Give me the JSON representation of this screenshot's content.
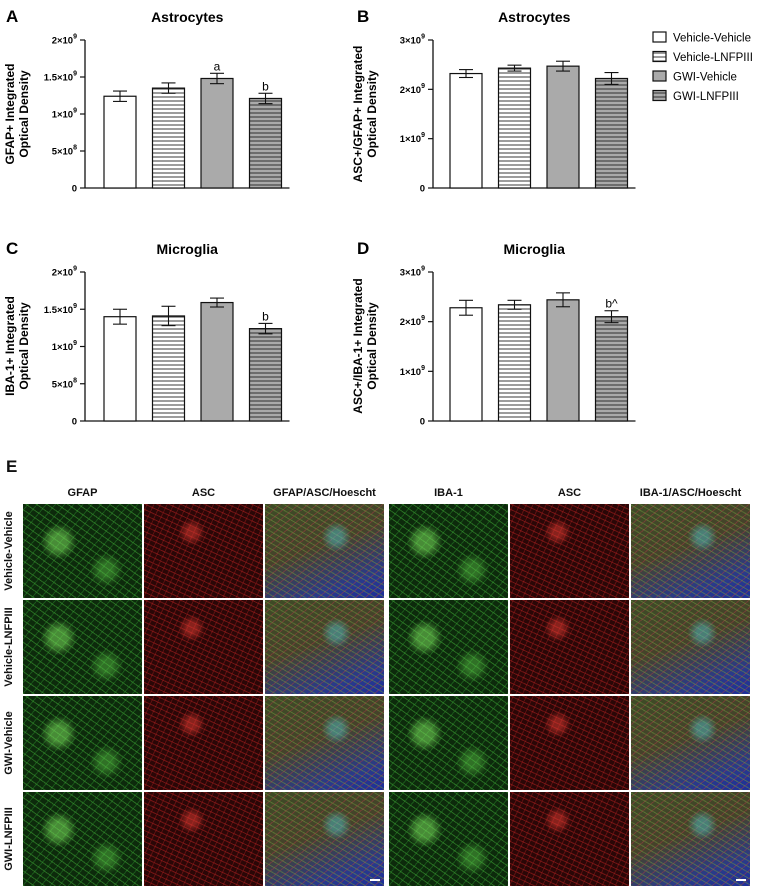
{
  "legend": {
    "items": [
      {
        "label": "Vehicle-Vehicle",
        "pattern": "white"
      },
      {
        "label": "Vehicle-LNFPIII",
        "pattern": "hlines"
      },
      {
        "label": "GWI-Vehicle",
        "pattern": "gray"
      },
      {
        "label": "GWI-LNFPIII",
        "pattern": "grayhlines"
      }
    ]
  },
  "colors": {
    "gray_fill": "#aaaaaa",
    "axis": "#111111",
    "line_fill": "#ffffff"
  },
  "chart_data": [
    {
      "panel": "A",
      "type": "bar",
      "title": "Astrocytes",
      "ylabel": [
        "GFAP+ Integrated",
        "Optical Density"
      ],
      "categories": [
        "Vehicle-Vehicle",
        "Vehicle-LNFPIII",
        "GWI-Vehicle",
        "GWI-LNFPIII"
      ],
      "values": [
        1240000000.0,
        1350000000.0,
        1480000000.0,
        1210000000.0
      ],
      "errors": [
        70000000.0,
        70000000.0,
        70000000.0,
        70000000.0
      ],
      "annotations": [
        "",
        "",
        "a",
        "b"
      ],
      "ylim": [
        0,
        2000000000.0
      ],
      "yticks": [
        {
          "v": 0,
          "base": "0",
          "exp": ""
        },
        {
          "v": 500000000.0,
          "base": "5×10",
          "exp": "8"
        },
        {
          "v": 1000000000.0,
          "base": "1×10",
          "exp": "9"
        },
        {
          "v": 1500000000.0,
          "base": "1.5×10",
          "exp": "9"
        },
        {
          "v": 2000000000.0,
          "base": "2×10",
          "exp": "9"
        }
      ]
    },
    {
      "panel": "B",
      "type": "bar",
      "title": "Astrocytes",
      "ylabel": [
        "ASC+/GFAP+ Integrated",
        "Optical Density"
      ],
      "categories": [
        "Vehicle-Vehicle",
        "Vehicle-LNFPIII",
        "GWI-Vehicle",
        "GWI-LNFPIII"
      ],
      "values": [
        2320000000.0,
        2430000000.0,
        2470000000.0,
        2220000000.0
      ],
      "errors": [
        80000000.0,
        60000000.0,
        100000000.0,
        120000000.0
      ],
      "annotations": [
        "",
        "",
        "",
        ""
      ],
      "ylim": [
        0,
        3000000000.0
      ],
      "yticks": [
        {
          "v": 0,
          "base": "0",
          "exp": ""
        },
        {
          "v": 1000000000.0,
          "base": "1×10",
          "exp": "9"
        },
        {
          "v": 2000000000.0,
          "base": "2×10",
          "exp": "9"
        },
        {
          "v": 3000000000.0,
          "base": "3×10",
          "exp": "9"
        }
      ]
    },
    {
      "panel": "C",
      "type": "bar",
      "title": "Microglia",
      "ylabel": [
        "IBA-1+ Integrated",
        "Optical Density"
      ],
      "categories": [
        "Vehicle-Vehicle",
        "Vehicle-LNFPIII",
        "GWI-Vehicle",
        "GWI-LNFPIII"
      ],
      "values": [
        1400000000.0,
        1410000000.0,
        1590000000.0,
        1240000000.0
      ],
      "errors": [
        100000000.0,
        130000000.0,
        60000000.0,
        70000000.0
      ],
      "annotations": [
        "",
        "",
        "",
        "b"
      ],
      "ylim": [
        0,
        2000000000.0
      ],
      "yticks": [
        {
          "v": 0,
          "base": "0",
          "exp": ""
        },
        {
          "v": 500000000.0,
          "base": "5×10",
          "exp": "8"
        },
        {
          "v": 1000000000.0,
          "base": "1×10",
          "exp": "9"
        },
        {
          "v": 1500000000.0,
          "base": "1.5×10",
          "exp": "9"
        },
        {
          "v": 2000000000.0,
          "base": "2×10",
          "exp": "9"
        }
      ]
    },
    {
      "panel": "D",
      "type": "bar",
      "title": "Microglia",
      "ylabel": [
        "ASC+/IBA-1+ Integrated",
        "Optical Density"
      ],
      "categories": [
        "Vehicle-Vehicle",
        "Vehicle-LNFPIII",
        "GWI-Vehicle",
        "GWI-LNFPIII"
      ],
      "values": [
        2280000000.0,
        2340000000.0,
        2440000000.0,
        2100000000.0
      ],
      "errors": [
        150000000.0,
        90000000.0,
        140000000.0,
        120000000.0
      ],
      "annotations": [
        "",
        "",
        "",
        "b^"
      ],
      "ylim": [
        0,
        3000000000.0
      ],
      "yticks": [
        {
          "v": 0,
          "base": "0",
          "exp": ""
        },
        {
          "v": 1000000000.0,
          "base": "1×10",
          "exp": "9"
        },
        {
          "v": 2000000000.0,
          "base": "2×10",
          "exp": "9"
        },
        {
          "v": 3000000000.0,
          "base": "3×10",
          "exp": "9"
        }
      ]
    }
  ],
  "panelE": {
    "letter": "E",
    "columns": [
      "GFAP",
      "ASC",
      "GFAP/ASC/Hoescht",
      "IBA-1",
      "ASC",
      "IBA-1/ASC/Hoescht"
    ],
    "column_stains": [
      "green",
      "red",
      "merge",
      "green",
      "red",
      "merge"
    ],
    "rows": [
      "Vehicle-Vehicle",
      "Vehicle-LNFPIII",
      "GWI-Vehicle",
      "GWI-LNFPIII"
    ]
  }
}
